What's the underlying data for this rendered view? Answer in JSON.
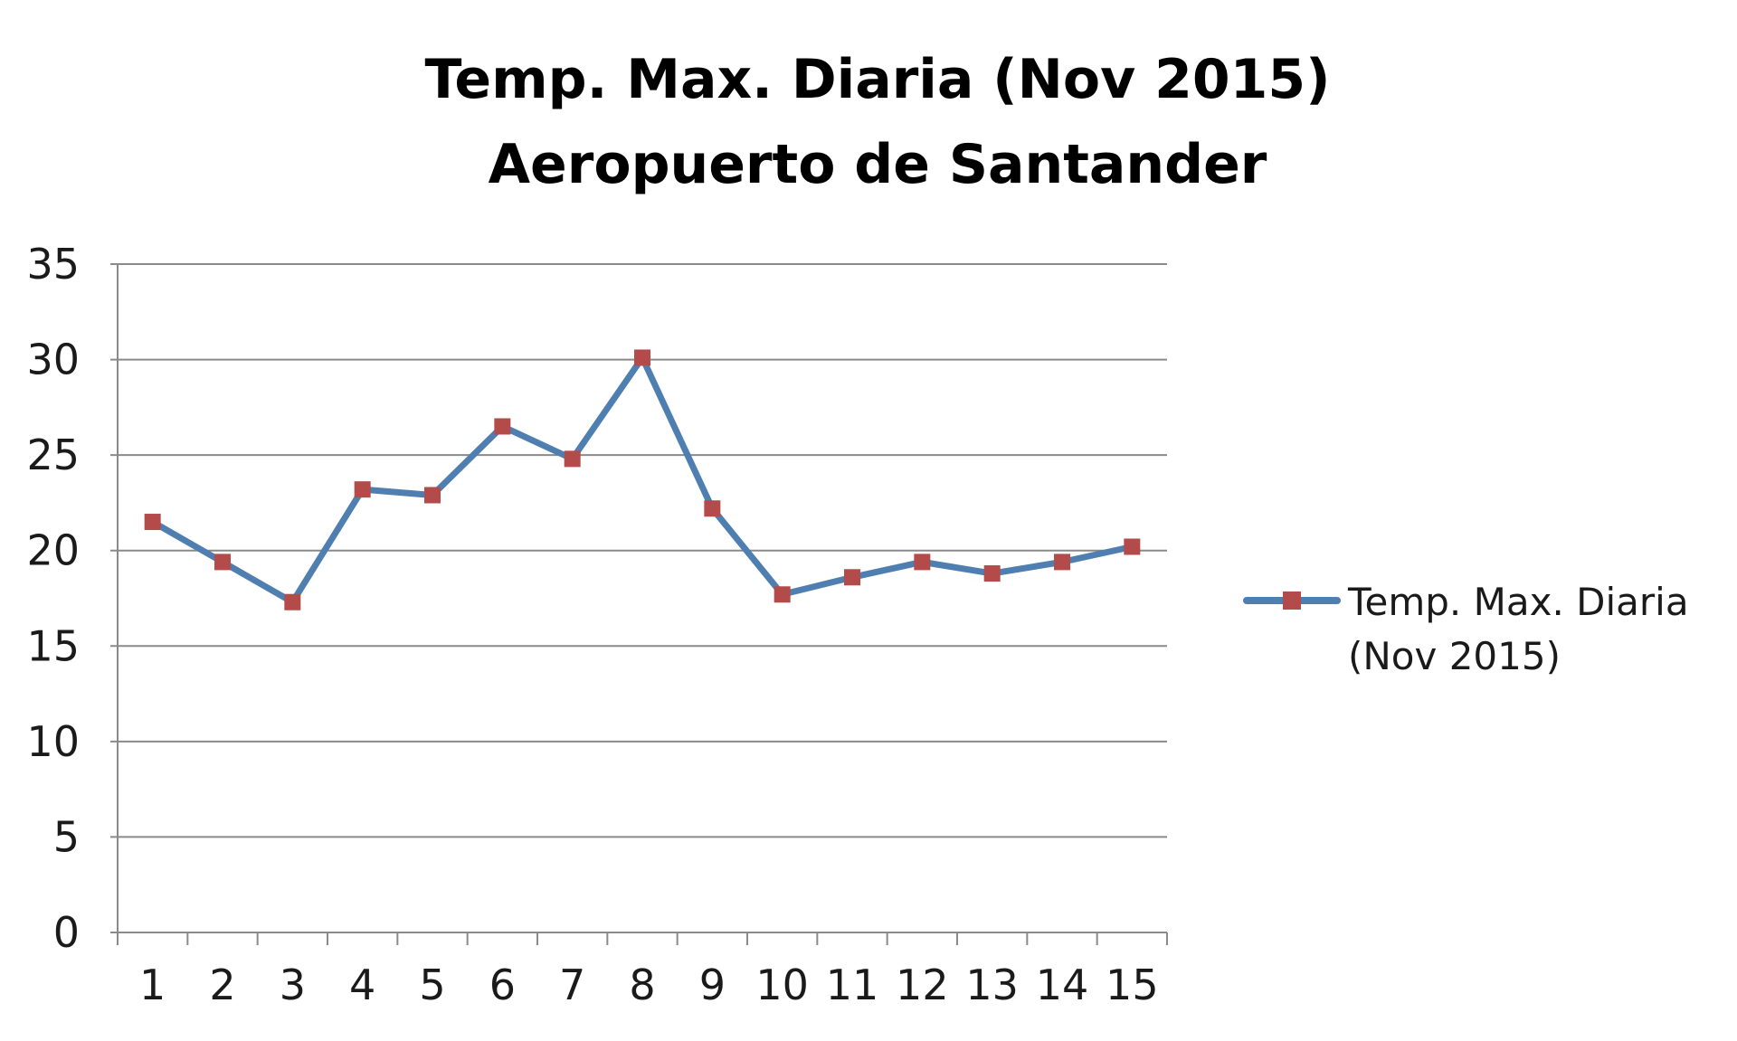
{
  "chart_data": {
    "type": "line",
    "title": "Temp. Max. Diaria (Nov 2015)",
    "subtitle": "Aeropuerto de Santander",
    "xlabel": "",
    "ylabel": "",
    "categories": [
      "1",
      "2",
      "3",
      "4",
      "5",
      "6",
      "7",
      "8",
      "9",
      "10",
      "11",
      "12",
      "13",
      "14",
      "15"
    ],
    "series": [
      {
        "name": "Temp. Max. Diaria (Nov 2015)",
        "legend_line1": "Temp. Max. Diaria",
        "legend_line2": "(Nov 2015)",
        "values": [
          21.5,
          19.4,
          17.3,
          23.2,
          22.9,
          26.5,
          24.8,
          30.1,
          22.2,
          17.7,
          18.6,
          19.4,
          18.8,
          19.4,
          20.2
        ],
        "line_color": "#4f7fb0",
        "marker_color": "#b44b4b"
      }
    ],
    "ylim": [
      0,
      35
    ],
    "yticks": [
      0,
      5,
      10,
      15,
      20,
      25,
      30,
      35
    ],
    "grid": true,
    "legend_position": "right"
  }
}
